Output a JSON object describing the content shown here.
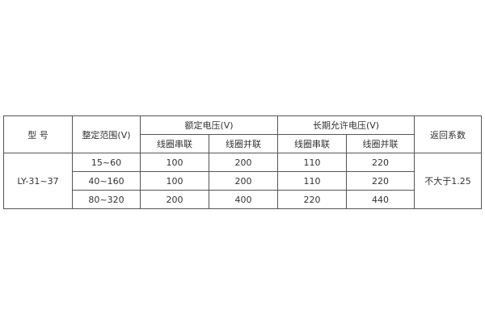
{
  "headers": {
    "model": "型 号",
    "setting_range": "整定范围(V)",
    "rated_voltage": "额定电压(V)",
    "long_term_voltage": "长期允许电压(V)",
    "return_coefficient": "返回系数",
    "series_coil": "线圈串联",
    "parallel_coil": "线圈并联"
  },
  "model": "LY-31~37",
  "return_value": "不大于1.25",
  "rows": [
    {
      "range": "15~60",
      "rated_series": "100",
      "rated_parallel": "200",
      "long_series": "110",
      "long_parallel": "220"
    },
    {
      "range": "40~160",
      "rated_series": "100",
      "rated_parallel": "200",
      "long_series": "110",
      "long_parallel": "220"
    },
    {
      "range": "80~320",
      "rated_series": "200",
      "rated_parallel": "400",
      "long_series": "220",
      "long_parallel": "440"
    }
  ]
}
